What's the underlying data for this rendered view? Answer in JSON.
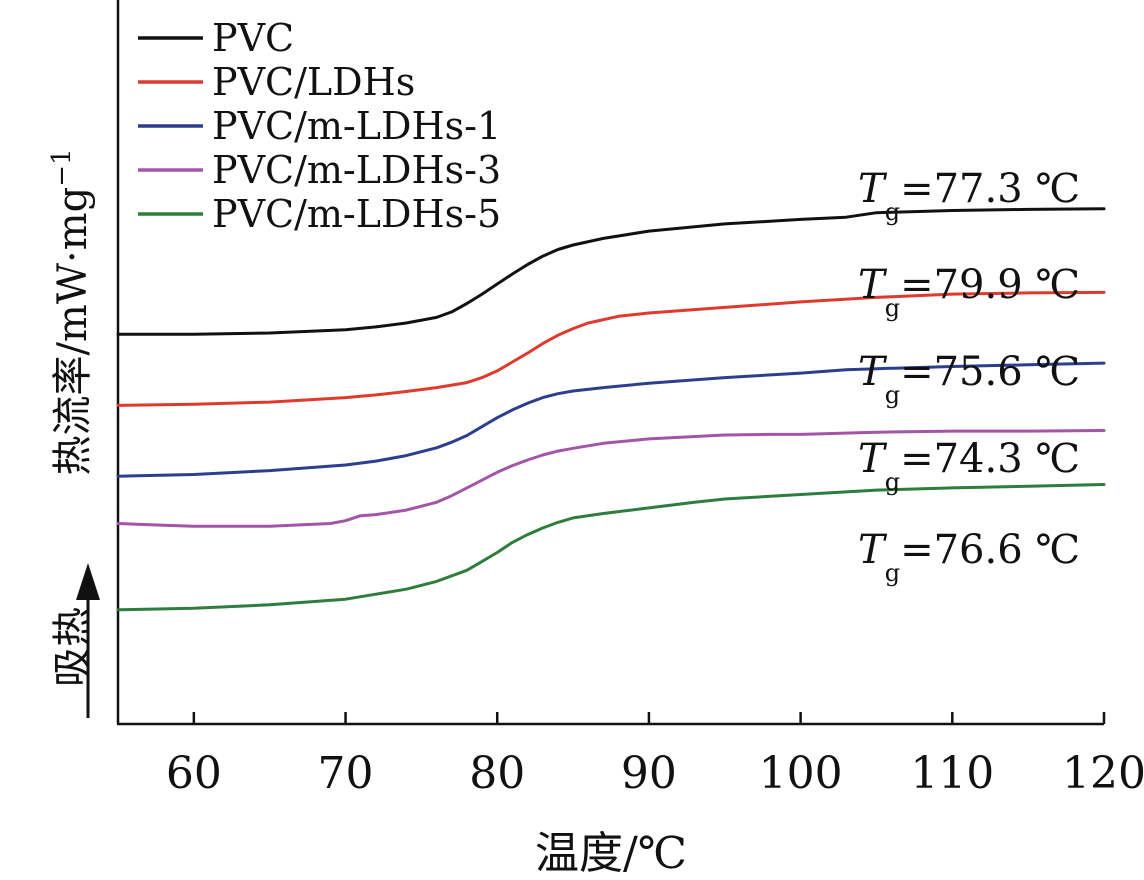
{
  "chart_data": {
    "type": "line",
    "title": "",
    "xlabel": "温度/℃",
    "ylabel": "热流率/mW·mg⁻¹",
    "ylabel_parts": {
      "text": "热流率/mW·mg",
      "sup": "−1"
    },
    "endotherm_label": "吸热",
    "xlim": [
      55,
      120
    ],
    "ylim": [
      0,
      13
    ],
    "x_ticks": [
      "60",
      "70",
      "80",
      "90",
      "100",
      "110",
      "120"
    ],
    "x_tick_values": [
      60,
      70,
      80,
      90,
      100,
      110,
      120
    ],
    "grid": false,
    "legend_position": "top-left",
    "tg_symbol": "T",
    "tg_subscript": "g",
    "series": [
      {
        "name": "PVC",
        "color": "#111111",
        "tg_label": "=77.3 ℃",
        "x": [
          55,
          60,
          65,
          70,
          72,
          74,
          76,
          77,
          78,
          79,
          80,
          81,
          82,
          83,
          84,
          85,
          87,
          90,
          95,
          100,
          103,
          105,
          110,
          115,
          120
        ],
        "y": [
          7.0,
          7.0,
          7.02,
          7.08,
          7.13,
          7.2,
          7.3,
          7.4,
          7.55,
          7.72,
          7.9,
          8.08,
          8.25,
          8.4,
          8.52,
          8.6,
          8.72,
          8.85,
          8.98,
          9.06,
          9.1,
          9.18,
          9.22,
          9.24,
          9.25
        ]
      },
      {
        "name": "PVC/LDHs",
        "color": "#e03a2f",
        "tg_label": "=79.9 ℃",
        "x": [
          55,
          60,
          65,
          70,
          72,
          74,
          76,
          78,
          79,
          80,
          81,
          82,
          83,
          84,
          85,
          86,
          88,
          90,
          95,
          100,
          105,
          110,
          115,
          120
        ],
        "y": [
          5.72,
          5.74,
          5.78,
          5.86,
          5.91,
          5.97,
          6.04,
          6.13,
          6.22,
          6.34,
          6.5,
          6.66,
          6.83,
          6.98,
          7.1,
          7.2,
          7.32,
          7.38,
          7.48,
          7.58,
          7.66,
          7.72,
          7.74,
          7.75
        ]
      },
      {
        "name": "PVC/m-LDHs-1",
        "color": "#2c3f8f",
        "tg_label": "=75.6 ℃",
        "x": [
          55,
          60,
          65,
          70,
          72,
          74,
          76,
          77,
          78,
          79,
          80,
          81,
          82,
          83,
          84,
          85,
          87,
          90,
          95,
          100,
          103,
          105,
          110,
          115,
          120
        ],
        "y": [
          4.45,
          4.48,
          4.55,
          4.65,
          4.72,
          4.82,
          4.96,
          5.06,
          5.18,
          5.34,
          5.5,
          5.64,
          5.76,
          5.86,
          5.93,
          5.98,
          6.04,
          6.12,
          6.22,
          6.3,
          6.36,
          6.38,
          6.42,
          6.45,
          6.48
        ]
      },
      {
        "name": "PVC/m-LDHs-3",
        "color": "#a455a8",
        "tg_label": "=74.3 ℃",
        "x": [
          55,
          58,
          60,
          65,
          69,
          70,
          71,
          72,
          74,
          76,
          77,
          78,
          79,
          80,
          81,
          82,
          83,
          84,
          85,
          87,
          90,
          95,
          98,
          100,
          105,
          110,
          115,
          120
        ],
        "y": [
          3.6,
          3.57,
          3.55,
          3.55,
          3.6,
          3.65,
          3.74,
          3.76,
          3.84,
          3.98,
          4.1,
          4.24,
          4.38,
          4.52,
          4.64,
          4.74,
          4.83,
          4.9,
          4.95,
          5.04,
          5.12,
          5.19,
          5.2,
          5.2,
          5.24,
          5.26,
          5.26,
          5.27
        ]
      },
      {
        "name": "PVC/m-LDHs-5",
        "color": "#2f7d3c",
        "tg_label": "=76.6 ℃",
        "x": [
          55,
          60,
          65,
          70,
          72,
          74,
          76,
          78,
          79,
          80,
          81,
          82,
          83,
          84,
          85,
          87,
          90,
          93,
          95,
          100,
          105,
          110,
          115,
          120
        ],
        "y": [
          2.05,
          2.08,
          2.14,
          2.24,
          2.33,
          2.42,
          2.56,
          2.76,
          2.92,
          3.08,
          3.26,
          3.4,
          3.52,
          3.62,
          3.7,
          3.78,
          3.88,
          3.98,
          4.04,
          4.12,
          4.2,
          4.24,
          4.27,
          4.3
        ]
      }
    ]
  }
}
